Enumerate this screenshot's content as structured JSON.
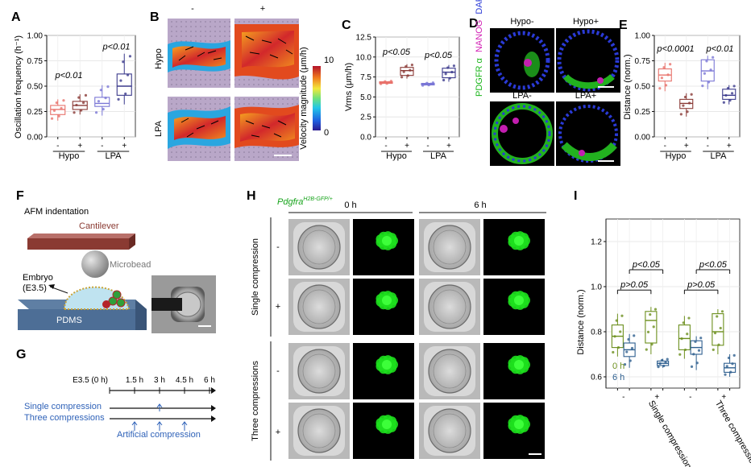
{
  "panels": {
    "A": {
      "letter": "A",
      "ylabel": "Oscillation frequency (h⁻¹)",
      "yticks": [
        "0.00",
        "0.25",
        "0.50",
        "0.75",
        "1.00"
      ],
      "xmarks": [
        "-",
        "+",
        "-",
        "+"
      ],
      "groups": [
        "Hypo",
        "LPA"
      ],
      "pvals": [
        "p<0.01",
        "p<0.01"
      ]
    },
    "B": {
      "letter": "B",
      "cols": [
        "-",
        "+"
      ],
      "rows": [
        "Hypo",
        "LPA"
      ],
      "cbar_label": "Velocity magnitude (μm/h)",
      "cbar_max": "10",
      "cbar_min": "0"
    },
    "C": {
      "letter": "C",
      "ylabel": "Vrms (μm/h)",
      "yticks": [
        "0.0",
        "2.5",
        "5.0",
        "7.5",
        "10.0",
        "12.5"
      ],
      "xmarks": [
        "-",
        "+",
        "-",
        "+"
      ],
      "groups": [
        "Hypo",
        "LPA"
      ],
      "pvals": [
        "p<0.05",
        "p<0.05"
      ]
    },
    "D": {
      "letter": "D",
      "cols_top": [
        "Hypo-",
        "Hypo+"
      ],
      "cols_bottom": [
        "LPA-",
        "LPA+"
      ],
      "side_dapi": "DAPI",
      "side_nanog": "NANOG",
      "side_pdgfr": "PDGFR α"
    },
    "E": {
      "letter": "E",
      "ylabel": "Distance (norm.)",
      "yticks": [
        "0.00",
        "0.25",
        "0.50",
        "0.75",
        "1.00"
      ],
      "xmarks": [
        "-",
        "+",
        "-",
        "+"
      ],
      "groups": [
        "Hypo",
        "LPA"
      ],
      "pvals": [
        "p<0.0001",
        "p<0.01"
      ]
    },
    "F": {
      "letter": "F",
      "title": "AFM indentation",
      "cantilever": "Cantilever",
      "microbead": "Microbead",
      "embryo": "Embryo",
      "embryo_stage": "(E3.5)",
      "substrate": "PDMS"
    },
    "G": {
      "letter": "G",
      "timepoints": [
        "E3.5 (0 h)",
        "1.5 h",
        "3 h",
        "4.5 h",
        "6 h"
      ],
      "single": "Single compression",
      "three": "Three compressions",
      "artificial": "Artificial compression"
    },
    "H": {
      "letter": "H",
      "reporter": "Pdgfra",
      "reporter_sup": "H2B-GFP/+",
      "times": [
        "0 h",
        "6 h"
      ],
      "row_signs": [
        "-",
        "+",
        "-",
        "+"
      ],
      "group_single": "Single compression",
      "group_three": "Three compressions"
    },
    "I": {
      "letter": "I",
      "ylabel": "Distance (norm.)",
      "yticks": [
        "0.6",
        "0.8",
        "1.0",
        "1.2"
      ],
      "legend_0h": "0 h",
      "legend_6h": "6 h",
      "xmarks": [
        "-",
        "+",
        "-",
        "+"
      ],
      "groups": [
        "Single compression",
        "Three compressions"
      ],
      "pvals": [
        "p<0.05",
        "p>0.05",
        "p<0.05",
        "p>0.05"
      ]
    }
  },
  "colors": {
    "hypo_minus": "#e8726b",
    "hypo_plus": "#8a3a36",
    "lpa_minus": "#7b77d6",
    "lpa_plus": "#3b3a8c",
    "zero_h": "#6c8f1d",
    "six_h": "#2e5f8f",
    "gfp": "#1ee01e",
    "blue_text": "#2f62b8"
  },
  "chart_data": [
    {
      "type": "box",
      "panel": "A",
      "categories": [
        "Hypo -",
        "Hypo +",
        "LPA -",
        "LPA +"
      ],
      "median": [
        0.27,
        0.31,
        0.33,
        0.5
      ],
      "q1": [
        0.22,
        0.27,
        0.3,
        0.41
      ],
      "q3": [
        0.31,
        0.35,
        0.39,
        0.62
      ],
      "whisker_low": [
        0.16,
        0.22,
        0.21,
        0.32
      ],
      "whisker_high": [
        0.37,
        0.42,
        0.51,
        0.82
      ],
      "ylim": [
        0,
        1
      ]
    },
    {
      "type": "box",
      "panel": "C",
      "categories": [
        "Hypo -",
        "Hypo +",
        "LPA -",
        "LPA +"
      ],
      "median": [
        6.8,
        8.3,
        6.6,
        8.1
      ],
      "q1": [
        6.7,
        7.7,
        6.5,
        7.4
      ],
      "q3": [
        6.9,
        8.7,
        6.7,
        8.6
      ],
      "whisker_low": [
        6.6,
        7.3,
        6.4,
        6.9
      ],
      "whisker_high": [
        7.0,
        9.1,
        6.8,
        9.0
      ],
      "ylim": [
        0,
        12.5
      ]
    },
    {
      "type": "box",
      "panel": "E",
      "categories": [
        "Hypo -",
        "Hypo +",
        "LPA -",
        "LPA +"
      ],
      "median": [
        0.61,
        0.33,
        0.65,
        0.41
      ],
      "q1": [
        0.55,
        0.28,
        0.55,
        0.37
      ],
      "q3": [
        0.67,
        0.37,
        0.76,
        0.47
      ],
      "whisker_low": [
        0.45,
        0.2,
        0.47,
        0.32
      ],
      "whisker_high": [
        0.73,
        0.43,
        0.8,
        0.51
      ],
      "ylim": [
        0,
        1
      ]
    },
    {
      "type": "box",
      "panel": "I",
      "categories": [
        "Single - 0 h",
        "Single - 6 h",
        "Single + 0 h",
        "Single + 6 h",
        "Three - 0 h",
        "Three - 6 h",
        "Three + 0 h",
        "Three + 6 h"
      ],
      "median": [
        0.78,
        0.72,
        0.85,
        0.66,
        0.77,
        0.73,
        0.8,
        0.64
      ],
      "q1": [
        0.73,
        0.69,
        0.75,
        0.65,
        0.72,
        0.7,
        0.74,
        0.62
      ],
      "q3": [
        0.83,
        0.75,
        0.89,
        0.67,
        0.83,
        0.76,
        0.88,
        0.66
      ],
      "whisker_low": [
        0.69,
        0.64,
        0.7,
        0.64,
        0.68,
        0.63,
        0.7,
        0.6
      ],
      "whisker_high": [
        0.88,
        0.79,
        0.91,
        0.68,
        0.87,
        0.78,
        0.9,
        0.7
      ],
      "ylim": [
        0.55,
        1.3
      ]
    }
  ]
}
